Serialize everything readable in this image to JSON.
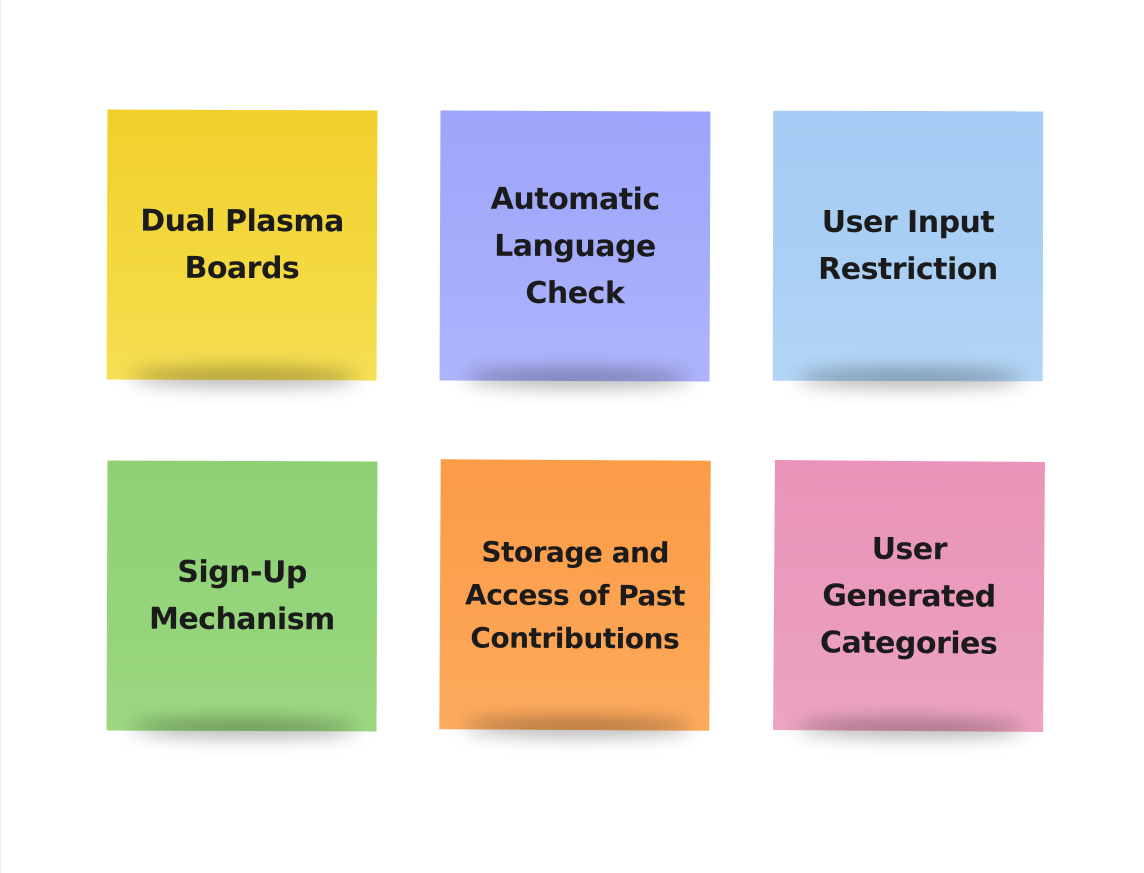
{
  "notes": [
    {
      "text": "Dual Plasma\nBoards",
      "color": "#f2d437"
    },
    {
      "text": "Automatic\nLanguage\nCheck",
      "color": "#a3aafb"
    },
    {
      "text": "User Input\nRestriction",
      "color": "#a8cef4"
    },
    {
      "text": "Sign-Up\nMechanism",
      "color": "#93d379"
    },
    {
      "text": "Storage and\nAccess of Past\nContributions",
      "color": "#fca04e"
    },
    {
      "text": "User\nGenerated\nCategories",
      "color": "#eb9abd"
    }
  ]
}
